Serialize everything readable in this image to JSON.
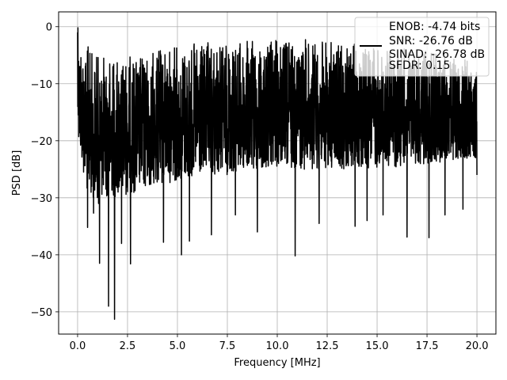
{
  "chart_data": {
    "type": "line",
    "xlabel": "Frequency [MHz]",
    "ylabel": "PSD [dB]",
    "xlim": [
      -0.95,
      20.95
    ],
    "ylim": [
      -53.9,
      2.6
    ],
    "xticks": [
      0.0,
      2.5,
      5.0,
      7.5,
      10.0,
      12.5,
      15.0,
      17.5,
      20.0
    ],
    "xtick_labels": [
      "0.0",
      "2.5",
      "5.0",
      "7.5",
      "10.0",
      "12.5",
      "15.0",
      "17.5",
      "20.0"
    ],
    "yticks": [
      0,
      -10,
      -20,
      -30,
      -40,
      -50
    ],
    "ytick_labels": [
      "0",
      "−10",
      "−20",
      "−30",
      "−40",
      "−50"
    ],
    "grid": true,
    "legend_location": "top-right",
    "legend_entries": [
      "ENOB: -4.74 bits",
      "SNR: -26.76 dB",
      "SINAD: -26.78 dB",
      "SFDR: 0.15"
    ],
    "series": [
      {
        "color": "#000000",
        "style": "dense noisy trace",
        "x_range": [
          0.0,
          20.0
        ],
        "upper_envelope_db": [
          [
            0.0,
            -1.0
          ],
          [
            1.0,
            -5.0
          ],
          [
            3.0,
            -5.0
          ],
          [
            5.0,
            -3.0
          ],
          [
            8.0,
            -2.5
          ],
          [
            11.0,
            -2.0
          ],
          [
            14.0,
            -3.0
          ],
          [
            17.0,
            -4.0
          ],
          [
            20.0,
            -6.0
          ]
        ],
        "lower_envelope_db": [
          [
            0.0,
            -20.0
          ],
          [
            0.5,
            -30.0
          ],
          [
            2.0,
            -30.0
          ],
          [
            5.0,
            -27.0
          ],
          [
            10.0,
            -25.0
          ],
          [
            15.0,
            -25.0
          ],
          [
            20.0,
            -23.0
          ]
        ],
        "deep_nulls": [
          [
            0.5,
            -35.2
          ],
          [
            0.8,
            -32.7
          ],
          [
            1.05,
            -31.0
          ],
          [
            1.1,
            -41.5
          ],
          [
            1.55,
            -49.0
          ],
          [
            1.85,
            -51.3
          ],
          [
            2.2,
            -38.0
          ],
          [
            2.65,
            -41.6
          ],
          [
            4.3,
            -37.8
          ],
          [
            5.2,
            -40.0
          ],
          [
            5.6,
            -37.6
          ],
          [
            6.7,
            -36.5
          ],
          [
            7.9,
            -33.0
          ],
          [
            9.0,
            -36.0
          ],
          [
            10.9,
            -40.2
          ],
          [
            12.1,
            -34.5
          ],
          [
            13.9,
            -35.0
          ],
          [
            14.5,
            -34.0
          ],
          [
            15.3,
            -33.0
          ],
          [
            16.5,
            -36.9
          ],
          [
            17.6,
            -37.0
          ],
          [
            18.4,
            -33.0
          ],
          [
            19.3,
            -32.0
          ],
          [
            20.0,
            -26.0
          ]
        ]
      }
    ]
  }
}
